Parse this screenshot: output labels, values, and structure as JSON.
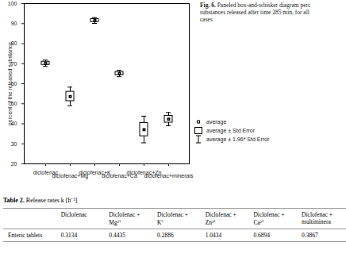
{
  "chart_data": {
    "type": "box",
    "ylabel": "percent of the released substance",
    "categories": [
      "diclofenac",
      "diclofenac+Mg",
      "diclofenac+K",
      "diclofenac+Ca",
      "diclofenac+Zn",
      "diclofenac+minerals"
    ],
    "series": [
      {
        "name": "average",
        "values": [
          70.2,
          53.6,
          91.5,
          65.1,
          37.1,
          42.3
        ]
      },
      {
        "name": "average ± Std Error",
        "low": [
          69.4,
          51.3,
          90.8,
          64.3,
          33.8,
          40.6
        ],
        "high": [
          71.0,
          56.0,
          92.3,
          65.9,
          40.4,
          44.0
        ]
      },
      {
        "name": "average ± 1.96* Std Error",
        "low": [
          68.6,
          49.0,
          90.1,
          63.5,
          30.5,
          39.0
        ],
        "high": [
          71.8,
          58.3,
          93.0,
          66.7,
          43.8,
          45.6
        ]
      }
    ],
    "ylim": [
      20,
      100
    ],
    "yticks": [
      20,
      30,
      40,
      50,
      60,
      70,
      80,
      90,
      100
    ],
    "legend": "right",
    "grid": false,
    "color": "#000000"
  },
  "caption": {
    "label": "Fig. 6.",
    "lines": [
      "Paneled box-and-whisker diagram perc",
      "substances released after time 285 min, for all",
      "cases"
    ]
  },
  "table": {
    "label": "Table 2.",
    "title": "Release rates k [h⁻¹]",
    "header": [
      "",
      "Diclofenac",
      "Diclofenac + Mg²⁺",
      "Diclofenac + K⁺",
      "Diclofenac + Zn²⁺",
      "Diclofenac + Ca²⁺",
      "Diclofenac + multiminera"
    ],
    "rows": [
      [
        "Enteric tablets",
        "0.3134",
        "0.4435",
        "0.2886",
        "1.0434",
        "0.6894",
        "0.3867"
      ]
    ]
  }
}
